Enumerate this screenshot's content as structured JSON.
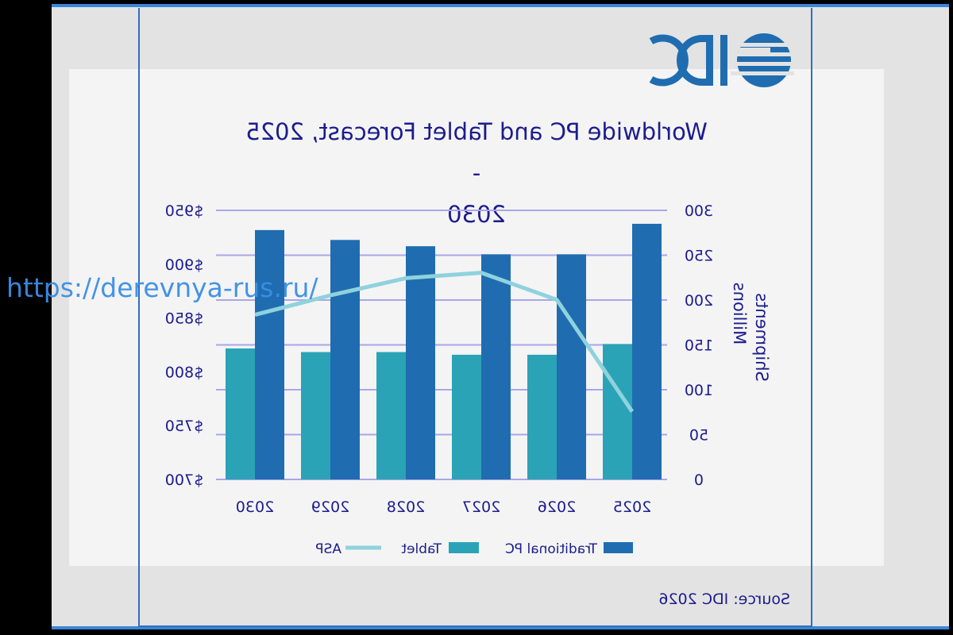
{
  "logo_text": "IDC",
  "source": "Source: IDC 2026",
  "watermark": "https://derevnya-rus.ru/",
  "colors": {
    "pc": "#1f6db0",
    "tablet": "#2ba3b6",
    "asp": "#8fd2dd",
    "grid": "#aaa6e8",
    "text": "#1c1c8e"
  },
  "chart_data": {
    "type": "bar",
    "title_line1": "Worldwide PC and Tablet Forecast, 2025 -",
    "title_line2": "2030",
    "categories": [
      "2025",
      "2026",
      "2027",
      "2028",
      "2029",
      "2030"
    ],
    "series": [
      {
        "name": "Traditional PC",
        "type": "bar",
        "axis": "left",
        "values": [
          285,
          251,
          251,
          260,
          267,
          278
        ]
      },
      {
        "name": "Tablet",
        "type": "bar",
        "axis": "left",
        "values": [
          151,
          139,
          139,
          142,
          142,
          146
        ]
      },
      {
        "name": "ASP",
        "type": "line",
        "axis": "right",
        "values": [
          763,
          867,
          892,
          887,
          871,
          853
        ]
      }
    ],
    "ylabel_line1": "Shipments",
    "ylabel_line2": "Millions",
    "ylim": [
      0,
      300
    ],
    "yticks": [
      "0",
      "50",
      "100",
      "150",
      "200",
      "250",
      "300"
    ],
    "y2lim": [
      700,
      950
    ],
    "y2ticks": [
      "$700",
      "$750",
      "$800",
      "$850",
      "$900",
      "$950"
    ],
    "legend": [
      "Traditional PC",
      "Tablet",
      "ASP"
    ],
    "legend_position": "bottom",
    "grid": true,
    "mirrored": true
  }
}
